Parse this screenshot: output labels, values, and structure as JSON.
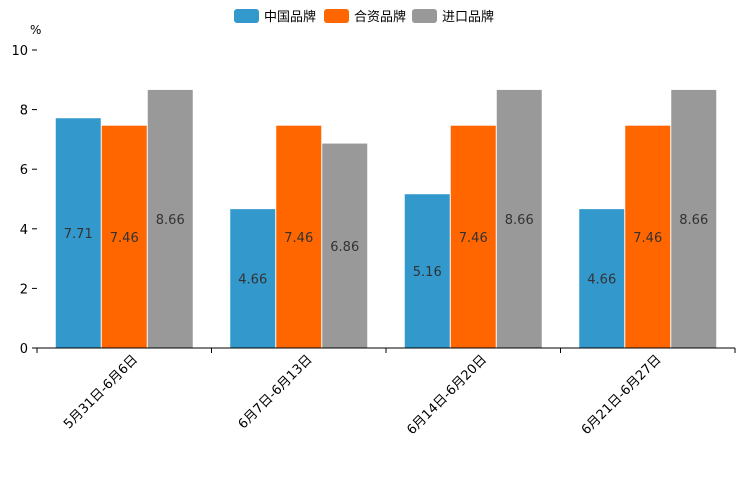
{
  "chart_data": {
    "type": "bar",
    "title": "",
    "unit": "%",
    "xlabel": "",
    "ylabel": "%",
    "ylim": [
      0,
      10
    ],
    "yticks": [
      0,
      2,
      4,
      6,
      8,
      10
    ],
    "grid": false,
    "legend_position": "top-center",
    "categories": [
      "5月31日-6月6日",
      "6月7日-6月13日",
      "6月14日-6月20日",
      "6月21日-6月27日"
    ],
    "series": [
      {
        "name": "中国品牌",
        "color": "#3398cc",
        "values": [
          7.71,
          4.66,
          5.16,
          4.66
        ]
      },
      {
        "name": "合资品牌",
        "color": "#ff6600",
        "values": [
          7.46,
          7.46,
          7.46,
          7.46
        ]
      },
      {
        "name": "进口品牌",
        "color": "#999999",
        "values": [
          8.66,
          6.86,
          8.66,
          8.66
        ]
      }
    ]
  }
}
